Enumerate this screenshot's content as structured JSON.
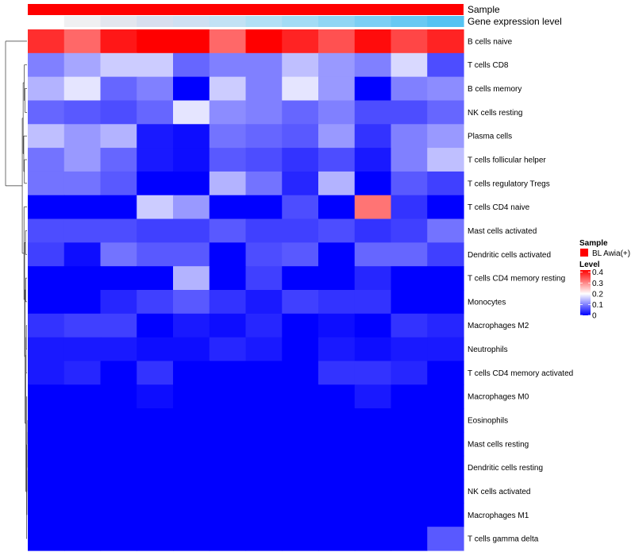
{
  "chart_data": {
    "type": "heatmap",
    "annotation_labels": {
      "sample": "Sample",
      "expression": "Gene expression level"
    },
    "sample_color": "#ff0000",
    "expression_colors": [
      "#ffffff",
      "#f0f0f2",
      "#e3e6ee",
      "#d8dfee",
      "#cfe0f2",
      "#c2e2f5",
      "#b2e0f5",
      "#a2dcf5",
      "#90d6f4",
      "#7ccff4",
      "#68c9f3",
      "#55c3f2"
    ],
    "rows": [
      "B cells naive",
      "T cells CD8",
      "B cells memory",
      "NK cells resting",
      "Plasma cells",
      "T cells follicular helper",
      "T cells regulatory  Tregs",
      "T cells CD4 naive",
      "Mast cells activated",
      "Dendritic cells activated",
      "T cells CD4 memory resting",
      "Monocytes",
      "Macrophages M2",
      "Neutrophils",
      "T cells CD4 memory activated",
      "Macrophages M0",
      "Eosinophils",
      "Mast cells resting",
      "Dendritic cells resting",
      "NK cells activated",
      "Macrophages M1",
      "T cells gamma delta"
    ],
    "values": [
      [
        0.38,
        0.33,
        0.4,
        0.42,
        0.42,
        0.33,
        0.42,
        0.39,
        0.35,
        0.41,
        0.36,
        0.39
      ],
      [
        0.1,
        0.13,
        0.16,
        0.16,
        0.08,
        0.1,
        0.1,
        0.15,
        0.12,
        0.1,
        0.17,
        0.06
      ],
      [
        0.14,
        0.18,
        0.08,
        0.1,
        0.0,
        0.16,
        0.1,
        0.18,
        0.12,
        0.0,
        0.1,
        0.11
      ],
      [
        0.08,
        0.07,
        0.06,
        0.08,
        0.18,
        0.11,
        0.1,
        0.08,
        0.1,
        0.06,
        0.06,
        0.08
      ],
      [
        0.15,
        0.12,
        0.14,
        0.02,
        0.01,
        0.09,
        0.08,
        0.07,
        0.12,
        0.04,
        0.1,
        0.12
      ],
      [
        0.09,
        0.12,
        0.08,
        0.02,
        0.01,
        0.07,
        0.06,
        0.04,
        0.06,
        0.02,
        0.1,
        0.15
      ],
      [
        0.09,
        0.09,
        0.07,
        0.0,
        0.0,
        0.14,
        0.09,
        0.03,
        0.14,
        0.0,
        0.07,
        0.05
      ],
      [
        0.0,
        0.0,
        0.0,
        0.16,
        0.12,
        0.0,
        0.0,
        0.06,
        0.0,
        0.32,
        0.04,
        0.0
      ],
      [
        0.06,
        0.06,
        0.06,
        0.05,
        0.05,
        0.07,
        0.05,
        0.05,
        0.06,
        0.04,
        0.05,
        0.09
      ],
      [
        0.05,
        0.01,
        0.09,
        0.07,
        0.07,
        0.0,
        0.06,
        0.07,
        0.0,
        0.08,
        0.08,
        0.05
      ],
      [
        0.0,
        0.0,
        0.0,
        0.0,
        0.14,
        0.0,
        0.05,
        0.0,
        0.0,
        0.03,
        0.0,
        0.0
      ],
      [
        0.0,
        0.0,
        0.03,
        0.05,
        0.07,
        0.04,
        0.02,
        0.05,
        0.04,
        0.04,
        0.0,
        0.0
      ],
      [
        0.04,
        0.05,
        0.05,
        0.0,
        0.02,
        0.01,
        0.03,
        0.0,
        0.01,
        0.0,
        0.04,
        0.03
      ],
      [
        0.02,
        0.02,
        0.02,
        0.01,
        0.01,
        0.03,
        0.02,
        0.0,
        0.02,
        0.01,
        0.02,
        0.02
      ],
      [
        0.02,
        0.03,
        0.0,
        0.04,
        0.0,
        0.0,
        0.0,
        0.0,
        0.04,
        0.04,
        0.03,
        0.0
      ],
      [
        0.0,
        0.0,
        0.0,
        0.01,
        0.0,
        0.0,
        0.0,
        0.0,
        0.0,
        0.02,
        0.0,
        0.0
      ],
      [
        0.0,
        0.0,
        0.0,
        0.0,
        0.0,
        0.0,
        0.0,
        0.0,
        0.0,
        0.0,
        0.0,
        0.0
      ],
      [
        0.0,
        0.0,
        0.0,
        0.0,
        0.0,
        0.0,
        0.0,
        0.0,
        0.0,
        0.0,
        0.0,
        0.0
      ],
      [
        0.0,
        0.0,
        0.0,
        0.0,
        0.0,
        0.0,
        0.0,
        0.0,
        0.0,
        0.0,
        0.0,
        0.0
      ],
      [
        0.0,
        0.0,
        0.0,
        0.0,
        0.0,
        0.0,
        0.0,
        0.0,
        0.0,
        0.0,
        0.0,
        0.0
      ],
      [
        0.0,
        0.0,
        0.0,
        0.0,
        0.0,
        0.0,
        0.0,
        0.0,
        0.0,
        0.0,
        0.0,
        0.0
      ],
      [
        0.0,
        0.0,
        0.0,
        0.0,
        0.0,
        0.0,
        0.0,
        0.0,
        0.0,
        0.0,
        0.0,
        0.07
      ]
    ],
    "scale": {
      "min": 0,
      "max": 0.42,
      "mid": 0.2,
      "low_color": "#0000ff",
      "mid_color": "#ffffff",
      "high_color": "#ff0000"
    },
    "legend": {
      "sample_title": "Sample",
      "sample_label": "BL Awia(+)",
      "level_title": "Level",
      "level_ticks": [
        {
          "value": 0.4,
          "label": "0.4"
        },
        {
          "value": 0.3,
          "label": "0.3"
        },
        {
          "value": 0.2,
          "label": "0.2"
        },
        {
          "value": 0.1,
          "label": "0.1"
        },
        {
          "value": 0,
          "label": "0"
        }
      ],
      "placement": "right"
    },
    "dendrogram": {
      "side": "left",
      "merges": [
        [
          -17,
          -18
        ],
        [
          -19,
          1
        ],
        [
          -20,
          2
        ],
        [
          -21,
          3
        ],
        [
          -16,
          4
        ],
        [
          -22,
          5
        ],
        [
          -13,
          -14
        ],
        [
          -15,
          7
        ],
        [
          6,
          8
        ],
        [
          -11,
          -12
        ],
        [
          10,
          9
        ],
        [
          -9,
          -10
        ],
        [
          12,
          11
        ],
        [
          -8,
          13
        ],
        [
          -6,
          -7
        ],
        [
          -5,
          15
        ],
        [
          -3,
          -4
        ],
        [
          -2,
          17
        ],
        [
          16,
          18
        ],
        [
          19,
          14
        ],
        [
          -1,
          20
        ]
      ],
      "heights": [
        0.001,
        0.002,
        0.003,
        0.004,
        0.01,
        0.02,
        0.03,
        0.04,
        0.05,
        0.06,
        0.09,
        0.07,
        0.11,
        0.14,
        0.12,
        0.15,
        0.1,
        0.13,
        0.18,
        0.22,
        1.0
      ]
    }
  }
}
